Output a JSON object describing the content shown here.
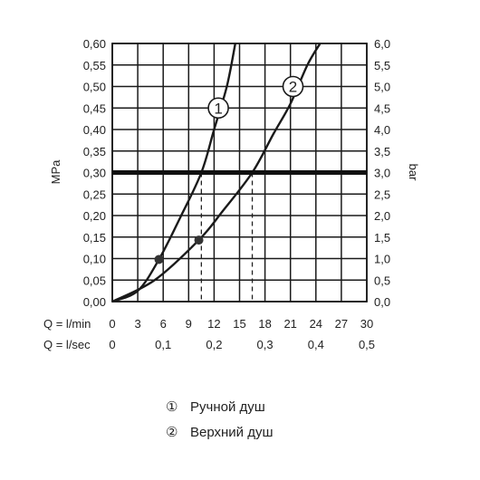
{
  "chart_data": {
    "type": "line",
    "left_axis": {
      "label": "MPa",
      "ylim": [
        0,
        0.6
      ],
      "ticks": [
        "0,00",
        "0,05",
        "0,10",
        "0,15",
        "0,20",
        "0,25",
        "0,30",
        "0,35",
        "0,40",
        "0,45",
        "0,50",
        "0,55",
        "0,60"
      ]
    },
    "right_axis": {
      "label": "bar",
      "ylim": [
        0,
        6
      ],
      "ticks": [
        "0,0",
        "0,5",
        "1,0",
        "1,5",
        "2,0",
        "2,5",
        "3,0",
        "3,5",
        "4,0",
        "4,5",
        "5,0",
        "5,5",
        "6,0"
      ]
    },
    "x_axis_lmin": {
      "label": "Q = l/min",
      "xlim": [
        0,
        30
      ],
      "ticks": [
        {
          "value": 0,
          "label": "0"
        },
        {
          "value": 3,
          "label": "3"
        },
        {
          "value": 6,
          "label": "6"
        },
        {
          "value": 9,
          "label": "9"
        },
        {
          "value": 12,
          "label": "12"
        },
        {
          "value": 15,
          "label": "15"
        },
        {
          "value": 18,
          "label": "18"
        },
        {
          "value": 21,
          "label": "21"
        },
        {
          "value": 24,
          "label": "24"
        },
        {
          "value": 27,
          "label": "27"
        },
        {
          "value": 30,
          "label": "30"
        }
      ]
    },
    "x_axis_lsec": {
      "label": "Q = l/sec",
      "ticks": [
        {
          "value": 0,
          "label": "0"
        },
        {
          "value": 0.1,
          "label": "0,1"
        },
        {
          "value": 0.2,
          "label": "0,2"
        },
        {
          "value": 0.3,
          "label": "0,3"
        },
        {
          "value": 0.4,
          "label": "0,4"
        },
        {
          "value": 0.5,
          "label": "0,5"
        }
      ]
    },
    "grid": true,
    "reference_line": {
      "y": 0.3
    },
    "series": [
      {
        "marker": "1",
        "points": [
          [
            0,
            0
          ],
          [
            3,
            0.025
          ],
          [
            5.5,
            0.098
          ],
          [
            8,
            0.195
          ],
          [
            10.5,
            0.3
          ],
          [
            12,
            0.4
          ],
          [
            13.5,
            0.5
          ],
          [
            14.5,
            0.6
          ]
        ],
        "dot": [
          5.5,
          0.098
        ],
        "operating_point": [
          10.5,
          0.3
        ],
        "label_at": [
          12.5,
          0.45
        ]
      },
      {
        "marker": "2",
        "points": [
          [
            0,
            0
          ],
          [
            5,
            0.05
          ],
          [
            10.2,
            0.143
          ],
          [
            13,
            0.21
          ],
          [
            16.5,
            0.3
          ],
          [
            19,
            0.39
          ],
          [
            21,
            0.46
          ],
          [
            23,
            0.55
          ],
          [
            24.5,
            0.6
          ]
        ],
        "dot": [
          10.2,
          0.143
        ],
        "operating_point": [
          16.5,
          0.3
        ],
        "label_at": [
          21.3,
          0.5
        ]
      }
    ],
    "legend": [
      {
        "marker": "①",
        "text": "Ручной душ"
      },
      {
        "marker": "②",
        "text": "Верхний душ"
      }
    ],
    "legend_position": "bottom-center"
  }
}
